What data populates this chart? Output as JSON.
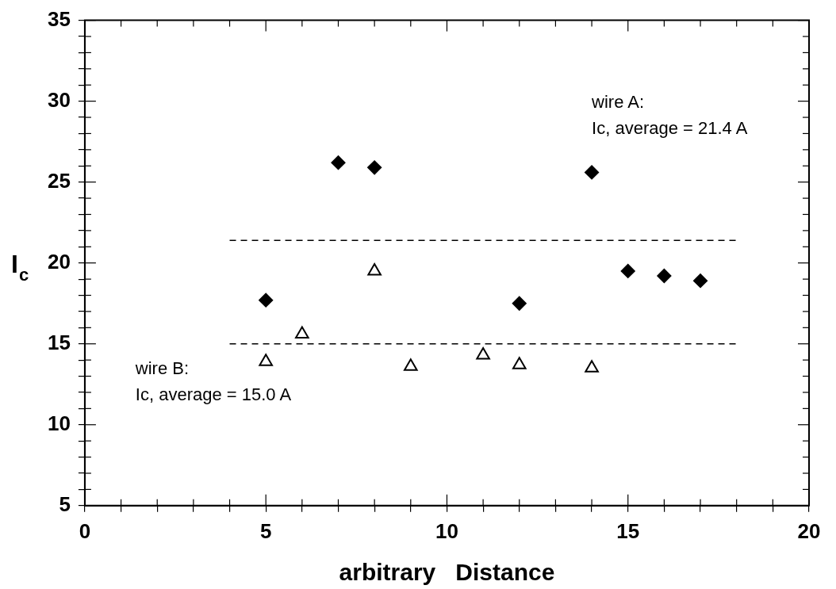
{
  "chart_data": {
    "type": "scatter",
    "xlabel": "arbitrary   Distance",
    "ylabel": "I$_{c}$",
    "xlim": [
      0,
      20
    ],
    "ylim": [
      5,
      35
    ],
    "xticks": [
      0,
      {
        "value": 1,
        "label": null
      },
      {
        "value": 2,
        "label": null
      },
      {
        "value": 3,
        "label": null
      },
      {
        "value": 4,
        "label": null
      },
      5,
      {
        "value": 6,
        "label": null
      },
      {
        "value": 7,
        "label": null
      },
      {
        "value": 8,
        "label": null
      },
      {
        "value": 9,
        "label": null
      },
      10,
      {
        "value": 11,
        "label": null
      },
      {
        "value": 12,
        "label": null
      },
      {
        "value": 13,
        "label": null
      },
      {
        "value": 14,
        "label": null
      },
      15,
      {
        "value": 16,
        "label": null
      },
      {
        "value": 17,
        "label": null
      },
      {
        "value": 18,
        "label": null
      },
      {
        "value": 19,
        "label": null
      },
      20
    ],
    "yticks": [
      5,
      {
        "value": 6,
        "label": null
      },
      {
        "value": 7,
        "label": null
      },
      {
        "value": 8,
        "label": null
      },
      {
        "value": 9,
        "label": null
      },
      10,
      {
        "value": 11,
        "label": null
      },
      {
        "value": 12,
        "label": null
      },
      {
        "value": 13,
        "label": null
      },
      {
        "value": 14,
        "label": null
      },
      15,
      {
        "value": 16,
        "label": null
      },
      {
        "value": 17,
        "label": null
      },
      {
        "value": 18,
        "label": null
      },
      {
        "value": 19,
        "label": null
      },
      20,
      {
        "value": 21,
        "label": null
      },
      {
        "value": 22,
        "label": null
      },
      {
        "value": 23,
        "label": null
      },
      {
        "value": 24,
        "label": null
      },
      25,
      {
        "value": 26,
        "label": null
      },
      {
        "value": 27,
        "label": null
      },
      {
        "value": 28,
        "label": null
      },
      {
        "value": 29,
        "label": null
      },
      30,
      {
        "value": 31,
        "label": null
      },
      {
        "value": 32,
        "label": null
      },
      {
        "value": 33,
        "label": null
      },
      {
        "value": 34,
        "label": null
      },
      35
    ],
    "grid": false,
    "legend": false,
    "series": [
      {
        "color": "#000000",
        "marker": "diamond",
        "x": [
          5,
          7,
          8,
          12,
          14,
          15,
          16,
          17
        ],
        "values": [
          17.7,
          26.2,
          25.9,
          17.5,
          25.6,
          19.5,
          19.2,
          18.9
        ]
      },
      {
        "color": "#000000",
        "marker": "triangle",
        "x": [
          5,
          6,
          8,
          9,
          11,
          12,
          14
        ],
        "values": [
          13.9,
          15.6,
          19.5,
          13.6,
          14.3,
          13.7,
          13.5
        ]
      },
      {
        "type": "line",
        "color": "#000000",
        "marker": "none",
        "line_style": "dashed",
        "x": [
          4,
          18
        ],
        "values": [
          21.4,
          21.4
        ]
      },
      {
        "type": "line",
        "color": "#000000",
        "marker": "none",
        "line_style": "dashed",
        "x": [
          4,
          18
        ],
        "values": [
          15.0,
          15.0
        ]
      }
    ],
    "annotations": [
      "wire A:\nIc, average = 21.4 A",
      "wire B:\nIc, average = 15.0 A"
    ]
  }
}
